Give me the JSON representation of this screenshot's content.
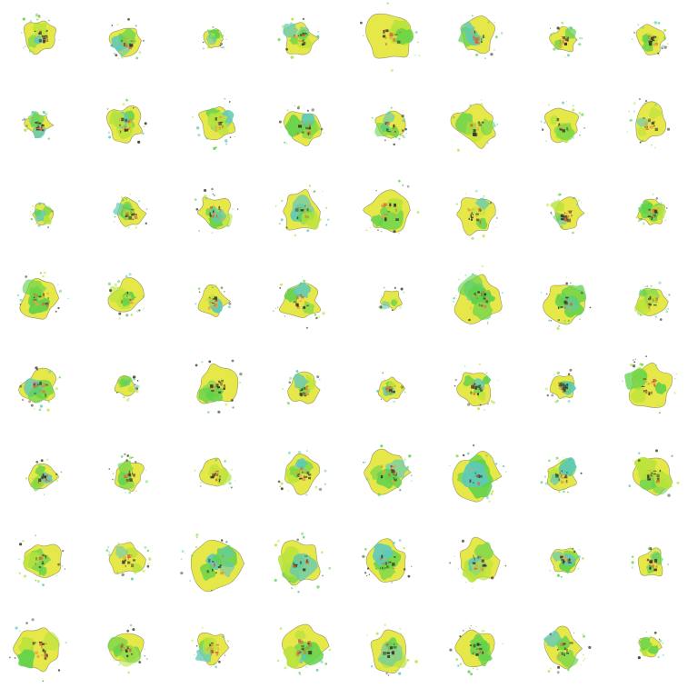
{
  "palette": {
    "background": "#ffffff",
    "yellow": "#e6e84a",
    "lime": "#b8e33b",
    "green": "#5fd24b",
    "teal": "#5fc9b8",
    "orange": "#e9a443",
    "red": "#d9663f",
    "dark": "#3b3a2a"
  },
  "cell_content": "generated-blob-sample"
}
